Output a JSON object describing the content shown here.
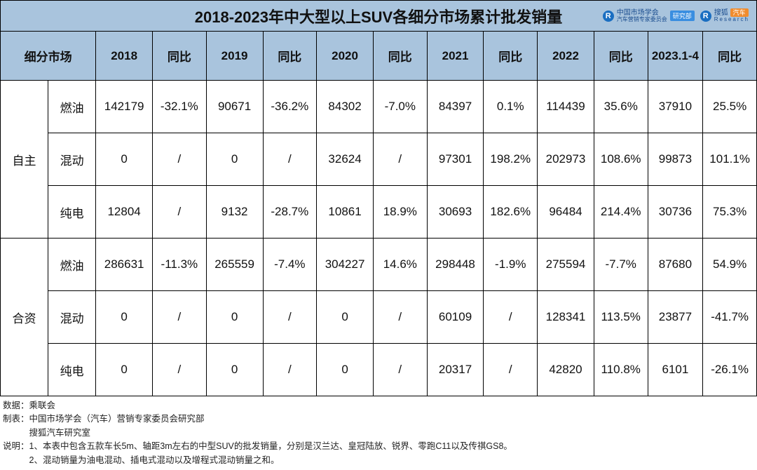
{
  "title": "2018-2023年中大型以上SUV各细分市场累计批发销量",
  "logos": {
    "l1_text": "中国市场学会",
    "l1_sub": "汽车营销专家委员会",
    "l1_badge": "研究部",
    "l2_text": "搜狐",
    "l2_badge": "汽车",
    "l2_sub": "Research"
  },
  "columns": {
    "segment": "细分市场",
    "y2018": "2018",
    "yoy2018": "同比",
    "y2019": "2019",
    "yoy2019": "同比",
    "y2020": "2020",
    "yoy2020": "同比",
    "y2021": "2021",
    "yoy2021": "同比",
    "y2022": "2022",
    "yoy2022": "同比",
    "y2023": "2023.1-4",
    "yoy2023": "同比"
  },
  "groups": [
    {
      "name": "自主",
      "rows": [
        {
          "sub": "燃油",
          "v2018": "142179",
          "yoy2018": "-32.1%",
          "v2019": "90671",
          "yoy2019": "-36.2%",
          "v2020": "84302",
          "yoy2020": "-7.0%",
          "v2021": "84397",
          "yoy2021": "0.1%",
          "v2022": "114439",
          "yoy2022": "35.6%",
          "v2023": "37910",
          "yoy2023": "25.5%"
        },
        {
          "sub": "混动",
          "v2018": "0",
          "yoy2018": "/",
          "v2019": "0",
          "yoy2019": "/",
          "v2020": "32624",
          "yoy2020": "/",
          "v2021": "97301",
          "yoy2021": "198.2%",
          "v2022": "202973",
          "yoy2022": "108.6%",
          "v2023": "99873",
          "yoy2023": "101.1%"
        },
        {
          "sub": "纯电",
          "v2018": "12804",
          "yoy2018": "/",
          "v2019": "9132",
          "yoy2019": "-28.7%",
          "v2020": "10861",
          "yoy2020": "18.9%",
          "v2021": "30693",
          "yoy2021": "182.6%",
          "v2022": "96484",
          "yoy2022": "214.4%",
          "v2023": "30736",
          "yoy2023": "75.3%"
        }
      ]
    },
    {
      "name": "合资",
      "rows": [
        {
          "sub": "燃油",
          "v2018": "286631",
          "yoy2018": "-11.3%",
          "v2019": "265559",
          "yoy2019": "-7.4%",
          "v2020": "304227",
          "yoy2020": "14.6%",
          "v2021": "298448",
          "yoy2021": "-1.9%",
          "v2022": "275594",
          "yoy2022": "-7.7%",
          "v2023": "87680",
          "yoy2023": "54.9%"
        },
        {
          "sub": "混动",
          "v2018": "0",
          "yoy2018": "/",
          "v2019": "0",
          "yoy2019": "/",
          "v2020": "0",
          "yoy2020": "/",
          "v2021": "60109",
          "yoy2021": "/",
          "v2022": "128341",
          "yoy2022": "113.5%",
          "v2023": "23877",
          "yoy2023": "-41.7%"
        },
        {
          "sub": "纯电",
          "v2018": "0",
          "yoy2018": "/",
          "v2019": "0",
          "yoy2019": "/",
          "v2020": "0",
          "yoy2020": "/",
          "v2021": "20317",
          "yoy2021": "/",
          "v2022": "42820",
          "yoy2022": "110.8%",
          "v2023": "6101",
          "yoy2023": "-26.1%"
        }
      ]
    }
  ],
  "footer": {
    "line1": "数据：乘联会",
    "line2": "制表：中国市场学会（汽车）营销专家委员会研究部",
    "line3": "　　　搜狐汽车研究室",
    "line4": "说明：1、本表中包含五款车长5m、轴距3m左右的中型SUV的批发销量，分别是汉兰达、皇冠陆放、锐界、零跑C11以及传祺GS8。",
    "line5": "　　　2、混动销量为油电混动、插电式混动以及增程式混动销量之和。"
  },
  "style": {
    "header_bg": "#a9c4dd",
    "border_color": "#000000",
    "body_bg": "#ffffff",
    "title_fontsize": 22,
    "cell_fontsize": 17,
    "footer_fontsize": 12.5,
    "row_height_header": 70,
    "row_height_body": 75
  }
}
